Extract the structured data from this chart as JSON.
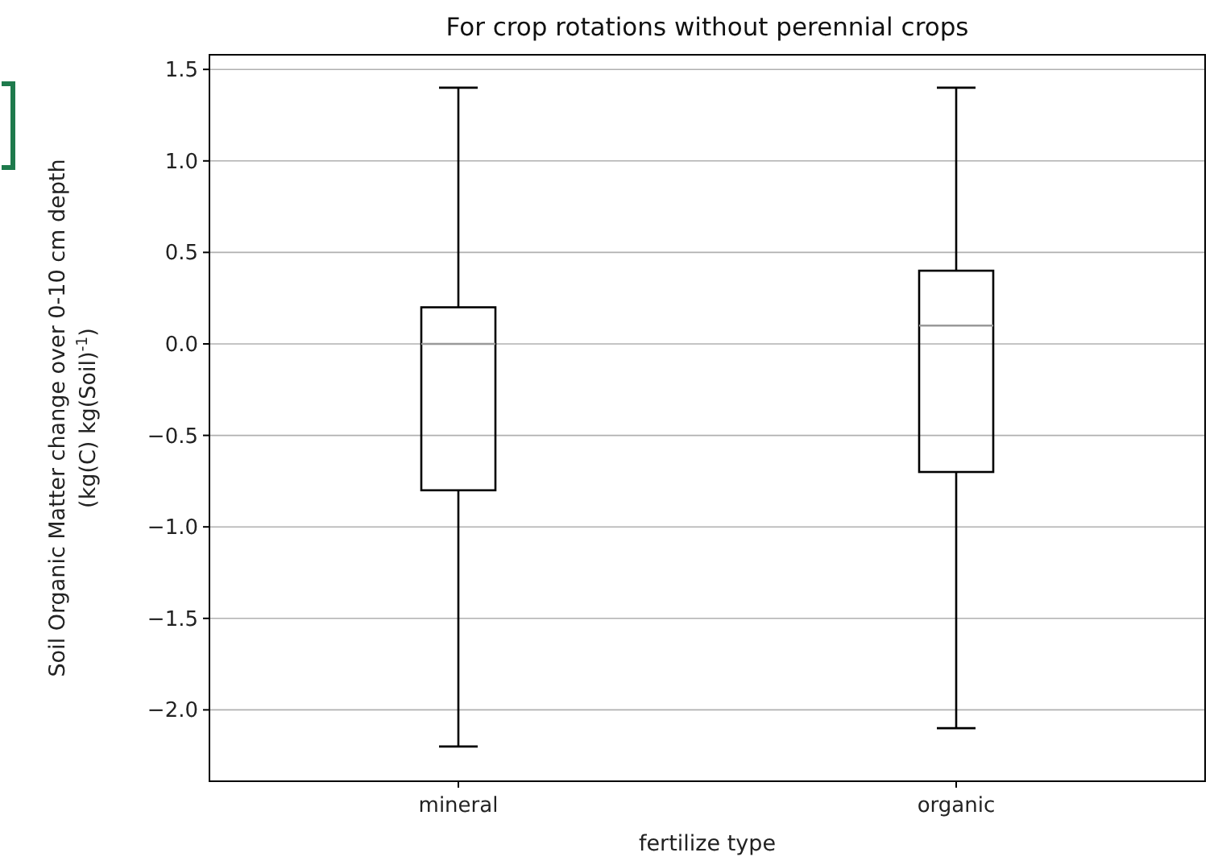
{
  "chart_data": {
    "type": "box",
    "title": "For crop rotations without perennial crops",
    "xlabel": "fertilize type",
    "ylabel": "Soil Organic Matter change over 0-10 cm depth\n(kg(C) kg(Soil)$^{-1}$)",
    "categories": [
      "mineral",
      "organic"
    ],
    "boxes": [
      {
        "low": -2.2,
        "q1": -0.8,
        "median": 0.0,
        "q3": 0.2,
        "high": 1.4
      },
      {
        "low": -2.1,
        "q1": -0.7,
        "median": 0.1,
        "q3": 0.4,
        "high": 1.4
      }
    ],
    "ylim": [
      -2.39,
      1.58
    ],
    "yticks": [
      {
        "value": -2.0,
        "label": "−2.0"
      },
      {
        "value": -1.5,
        "label": "−1.5"
      },
      {
        "value": -1.0,
        "label": "−1.0"
      },
      {
        "value": -0.5,
        "label": "−0.5"
      },
      {
        "value": 0.0,
        "label": "0.0"
      },
      {
        "value": 0.5,
        "label": "0.5"
      },
      {
        "value": 1.0,
        "label": "1.0"
      },
      {
        "value": 1.5,
        "label": "1.5"
      }
    ],
    "grid": "y"
  }
}
